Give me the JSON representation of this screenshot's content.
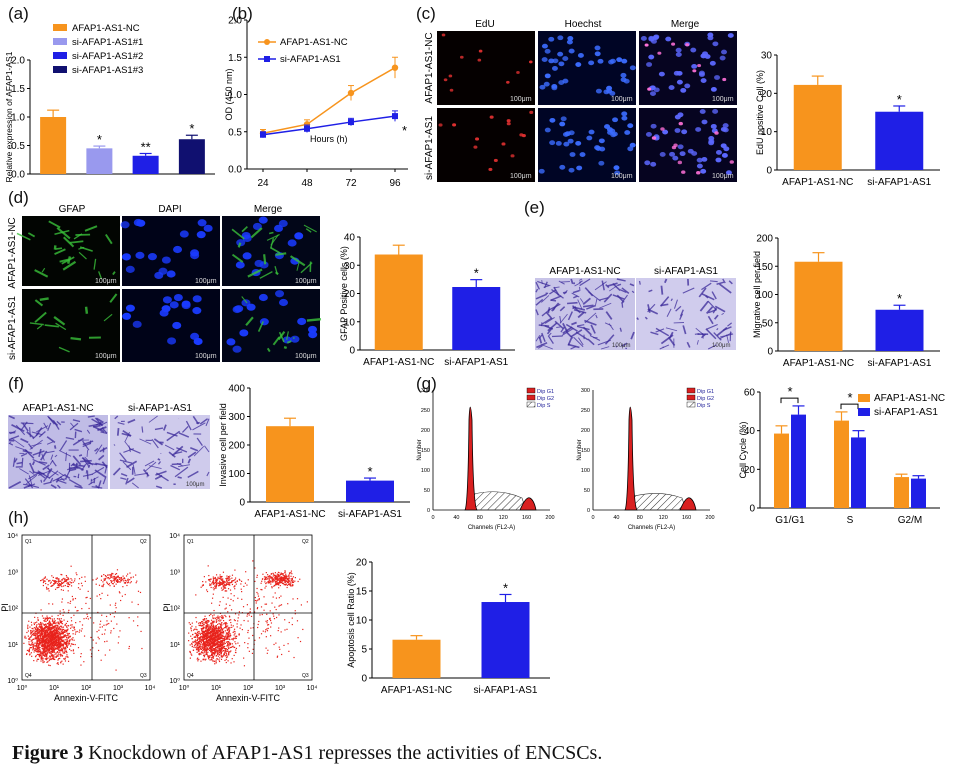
{
  "panels": {
    "a": "(a)",
    "b": "(b)",
    "c": "(c)",
    "d": "(d)",
    "e": "(e)",
    "f": "(f)",
    "g": "(g)",
    "h": "(h)"
  },
  "caption": {
    "figure": "Figure 3",
    "text": " Knockdown of AFAP1-AS1 represses the activities of ENCSCs."
  },
  "colors": {
    "nc": "#f7941d",
    "si": "#1f1fe6",
    "si1": "#9999ee",
    "si3": "#101070",
    "err": "#000000",
    "red": "#d92020",
    "blue": "#1a2bd8",
    "green": "#2aa02a"
  },
  "images": {
    "c": {
      "cols": [
        "EdU",
        "Hoechst",
        "Merge"
      ],
      "rows": [
        "AFAP1-AS1-NC",
        "si-AFAP1-AS1"
      ],
      "scale": "100μm"
    },
    "d": {
      "cols": [
        "GFAP",
        "DAPI",
        "Merge"
      ],
      "rows": [
        "AFAP1-AS1-NC",
        "si-AFAP1-AS1"
      ],
      "scale": "100μm"
    },
    "e": {
      "cols": [
        "AFAP1-AS1-NC",
        "si-AFAP1-AS1"
      ],
      "scale": "100μm"
    },
    "f": {
      "cols": [
        "AFAP1-AS1-NC",
        "si-AFAP1-AS1"
      ],
      "scale": "100μm"
    }
  },
  "flow_hist": {
    "legend": [
      "Dip G1",
      "Dip G2",
      "Dip S"
    ],
    "xlabel": "Channels (FL2-A)",
    "ylabel": "Number",
    "xticks": [
      "0",
      "40",
      "80",
      "120",
      "160",
      "200"
    ],
    "yticks": [
      "0",
      "50",
      "100",
      "150",
      "200",
      "250",
      "300"
    ]
  },
  "flow_scatter": {
    "xlabel": "Annexin-V-FITC",
    "ylabel": "PI",
    "quadrants": [
      "Q1",
      "Q2",
      "Q3",
      "Q4"
    ],
    "ticks": [
      "10⁰",
      "10¹",
      "10²",
      "10³",
      "10⁴"
    ]
  },
  "chart_data": [
    {
      "id": "a",
      "type": "bar",
      "categories": [
        "AFAP1-AS1-NC",
        "si-AFAP1-AS1#1",
        "si-AFAP1-AS1#2",
        "si-AFAP1-AS1#3"
      ],
      "values": [
        1.0,
        0.45,
        0.32,
        0.61
      ],
      "errors": [
        0.12,
        0.04,
        0.04,
        0.07
      ],
      "sig": [
        "",
        "*",
        "**",
        "*"
      ],
      "ylabel": "Relative expression of AFAP1-AS1",
      "ylim": [
        0,
        2.0
      ],
      "yticks": [
        "0.0",
        "0.5",
        "1.0",
        "1.5",
        "2.0"
      ],
      "legend": [
        "AFAP1-AS1-NC",
        "si-AFAP1-AS1#1",
        "si-AFAP1-AS1#2",
        "si-AFAP1-AS1#3"
      ],
      "legend_placement": "top"
    },
    {
      "id": "b",
      "type": "line",
      "x": [
        24,
        48,
        72,
        96
      ],
      "series": [
        {
          "name": "AFAP1-AS1-NC",
          "values": [
            0.48,
            0.6,
            1.02,
            1.36
          ],
          "errors": [
            0.05,
            0.06,
            0.1,
            0.14
          ]
        },
        {
          "name": "si-AFAP1-AS1",
          "values": [
            0.46,
            0.54,
            0.63,
            0.71
          ],
          "errors": [
            0.04,
            0.05,
            0.05,
            0.07
          ]
        }
      ],
      "ylabel": "OD (450 nm)",
      "xlabel": "Hours (h)",
      "ylim": [
        0,
        2.0
      ],
      "yticks": [
        "0.0",
        "0.5",
        "1.0",
        "1.5",
        "2.0"
      ],
      "xticks": [
        "24",
        "48",
        "72",
        "96"
      ],
      "sig": "*",
      "legend_placement": "top-left"
    },
    {
      "id": "c",
      "type": "bar",
      "categories": [
        "AFAP1-AS1-NC",
        "si-AFAP1-AS1"
      ],
      "values": [
        22.2,
        15.2
      ],
      "errors": [
        2.3,
        1.5
      ],
      "sig": [
        "",
        "*"
      ],
      "ylabel": "EdU positive Cell (%)",
      "ylim": [
        0,
        30
      ],
      "yticks": [
        "0",
        "10",
        "20",
        "30"
      ]
    },
    {
      "id": "d",
      "type": "bar",
      "categories": [
        "AFAP1-AS1-NC",
        "si-AFAP1-AS1"
      ],
      "values": [
        33.8,
        22.3
      ],
      "errors": [
        3.3,
        2.6
      ],
      "sig": [
        "",
        "*"
      ],
      "ylabel": "GFAP Positive cells (%)",
      "ylim": [
        0,
        40
      ],
      "yticks": [
        "0",
        "10",
        "20",
        "30",
        "40"
      ]
    },
    {
      "id": "e",
      "type": "bar",
      "categories": [
        "AFAP1-AS1-NC",
        "si-AFAP1-AS1"
      ],
      "values": [
        158,
        73
      ],
      "errors": [
        16,
        8
      ],
      "sig": [
        "",
        "*"
      ],
      "ylabel": "Migrative cell per field",
      "ylim": [
        0,
        200
      ],
      "yticks": [
        "0",
        "50",
        "100",
        "150",
        "200"
      ]
    },
    {
      "id": "f",
      "type": "bar",
      "categories": [
        "AFAP1-AS1-NC",
        "si-AFAP1-AS1"
      ],
      "values": [
        266,
        75
      ],
      "errors": [
        28,
        9
      ],
      "sig": [
        "",
        "*"
      ],
      "ylabel": "Invasive cell per field",
      "ylim": [
        0,
        400
      ],
      "yticks": [
        "0",
        "100",
        "200",
        "300",
        "400"
      ]
    },
    {
      "id": "g",
      "type": "bar",
      "categories": [
        "G1/G1",
        "S",
        "G2/M"
      ],
      "series": [
        {
          "name": "AFAP1-AS1-NC",
          "values": [
            38.5,
            45.2,
            16.0
          ],
          "errors": [
            4.0,
            4.5,
            1.5
          ]
        },
        {
          "name": "si-AFAP1-AS1",
          "values": [
            48.3,
            36.5,
            15.2
          ],
          "errors": [
            4.5,
            3.5,
            1.5
          ]
        }
      ],
      "ylabel": "Cell Cycle (%)",
      "ylim": [
        0,
        60
      ],
      "yticks": [
        "0",
        "20",
        "40",
        "60"
      ],
      "sig": [
        "*",
        "*",
        ""
      ],
      "legend_placement": "right"
    },
    {
      "id": "h",
      "type": "bar",
      "categories": [
        "AFAP1-AS1-NC",
        "si-AFAP1-AS1"
      ],
      "values": [
        6.6,
        13.1
      ],
      "errors": [
        0.7,
        1.3
      ],
      "sig": [
        "",
        "*"
      ],
      "ylabel": "Apoptosis cell Ratio (%)",
      "ylim": [
        0,
        20
      ],
      "yticks": [
        "0",
        "5",
        "10",
        "15",
        "20"
      ]
    }
  ]
}
